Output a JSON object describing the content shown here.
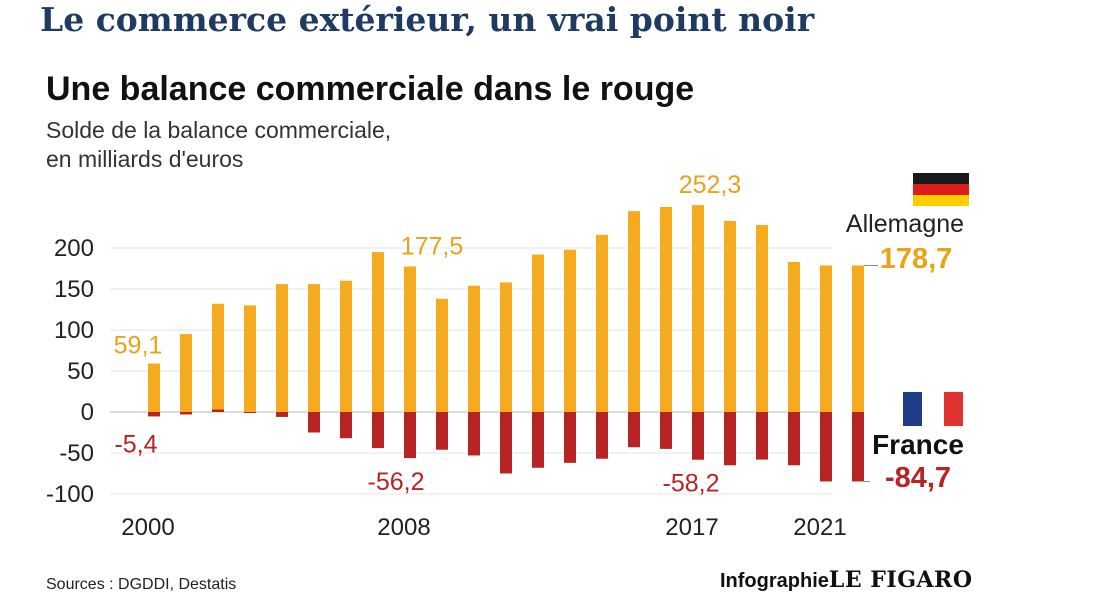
{
  "headline": "Le commerce extérieur, un vrai point noir",
  "chart_data": {
    "type": "bar",
    "title": "Une balance commerciale dans le rouge",
    "subtitle_line1": "Solde de la balance commerciale,",
    "subtitle_line2": "en milliards d'euros",
    "x": [
      2000,
      2001,
      2002,
      2003,
      2004,
      2005,
      2006,
      2007,
      2008,
      2009,
      2010,
      2011,
      2012,
      2013,
      2014,
      2015,
      2016,
      2017,
      2018,
      2019,
      2020,
      2021,
      2022
    ],
    "x_tick_labels": [
      "2000",
      "2008",
      "2017",
      "2021"
    ],
    "ylim": [
      -100,
      252.3
    ],
    "y_ticks": [
      200,
      150,
      100,
      50,
      0,
      -50,
      -100
    ],
    "y_tick_labels": [
      "200",
      "150",
      "100",
      "50",
      "0",
      "-50",
      "-100"
    ],
    "series": [
      {
        "name": "Allemagne",
        "color": "#f5ab1d",
        "label_color": "#e8a317",
        "icon": "germany-flag-icon",
        "values": [
          59.1,
          95,
          132,
          130,
          156,
          156,
          160,
          195,
          177.5,
          138,
          154,
          158,
          192,
          198,
          216,
          245,
          250,
          252.3,
          233,
          228,
          183,
          178.7,
          178.7
        ]
      },
      {
        "name": "France",
        "color": "#b82424",
        "label_color": "#b82424",
        "icon": "france-flag-icon",
        "values": [
          -5.4,
          -3,
          3,
          -1,
          -6,
          -25,
          -32,
          -44,
          -56.2,
          -46,
          -53,
          -75,
          -68,
          -62,
          -57,
          -43,
          -45,
          -58.2,
          -65,
          -58,
          -65,
          -84.7,
          -84.7
        ]
      }
    ],
    "annotations": [
      {
        "series": 0,
        "index": 0,
        "text": "59,1"
      },
      {
        "series": 0,
        "index": 8,
        "text": "177,5"
      },
      {
        "series": 0,
        "index": 17,
        "text": "252,3"
      },
      {
        "series": 1,
        "index": 0,
        "text": "-5,4"
      },
      {
        "series": 1,
        "index": 8,
        "text": "-56,2"
      },
      {
        "series": 1,
        "index": 17,
        "text": "-58,2"
      }
    ],
    "end_labels": {
      "allemagne_name": "Allemagne",
      "allemagne_value": "178,7",
      "france_name": "France",
      "france_value": "-84,7"
    }
  },
  "footer": {
    "source": "Sources : DGDDI, Destatis",
    "credit_prefix": "Infographie",
    "credit_brand": "LE FIGARO"
  }
}
